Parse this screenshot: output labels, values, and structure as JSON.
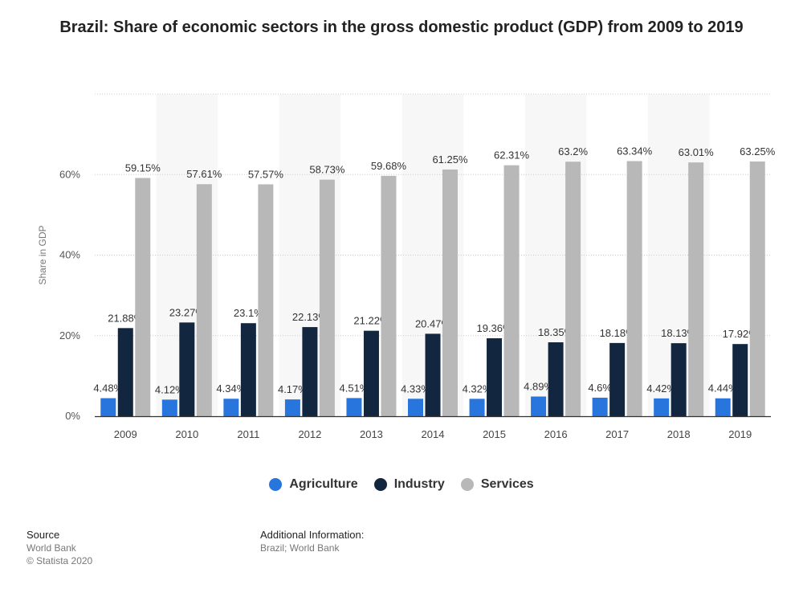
{
  "title": "Brazil: Share of economic sectors in the gross domestic product (GDP) from 2009 to 2019",
  "chart_data": {
    "type": "bar",
    "categories": [
      "2009",
      "2010",
      "2011",
      "2012",
      "2013",
      "2014",
      "2015",
      "2016",
      "2017",
      "2018",
      "2019"
    ],
    "series": [
      {
        "name": "Agriculture",
        "color": "#2876dd",
        "values": [
          4.48,
          4.12,
          4.34,
          4.17,
          4.51,
          4.33,
          4.32,
          4.89,
          4.6,
          4.42,
          4.44
        ],
        "labels": [
          "4.48%",
          "4.12%",
          "4.34%",
          "4.17%",
          "4.51%",
          "4.33%",
          "4.32%",
          "4.89%",
          "4.6%",
          "4.42%",
          "4.44%"
        ]
      },
      {
        "name": "Industry",
        "color": "#13263f",
        "values": [
          21.88,
          23.27,
          23.1,
          22.13,
          21.22,
          20.47,
          19.36,
          18.35,
          18.18,
          18.13,
          17.92
        ],
        "labels": [
          "21.88%",
          "23.27%",
          "23.1%",
          "22.13%",
          "21.22%",
          "20.47%",
          "19.36%",
          "18.35%",
          "18.18%",
          "18.13%",
          "17.92%"
        ]
      },
      {
        "name": "Services",
        "color": "#b8b8b8",
        "values": [
          59.15,
          57.61,
          57.57,
          58.73,
          59.68,
          61.25,
          62.31,
          63.2,
          63.34,
          63.01,
          63.25
        ],
        "labels": [
          "59.15%",
          "57.61%",
          "57.57%",
          "58.73%",
          "59.68%",
          "61.25%",
          "62.31%",
          "63.2%",
          "63.34%",
          "63.01%",
          "63.25%"
        ]
      }
    ],
    "ylabel": "Share in GDP",
    "xlabel": "",
    "ylim": [
      0,
      80
    ],
    "yticks": [
      0,
      20,
      40,
      60
    ],
    "ytick_labels": [
      "0%",
      "20%",
      "40%",
      "60%"
    ],
    "grid": true,
    "legend_position": "bottom-center"
  },
  "footer": {
    "source_heading": "Source",
    "source_lines": [
      "World Bank",
      "© Statista 2020"
    ],
    "info_heading": "Additional Information:",
    "info_lines": [
      "Brazil; World Bank"
    ]
  }
}
